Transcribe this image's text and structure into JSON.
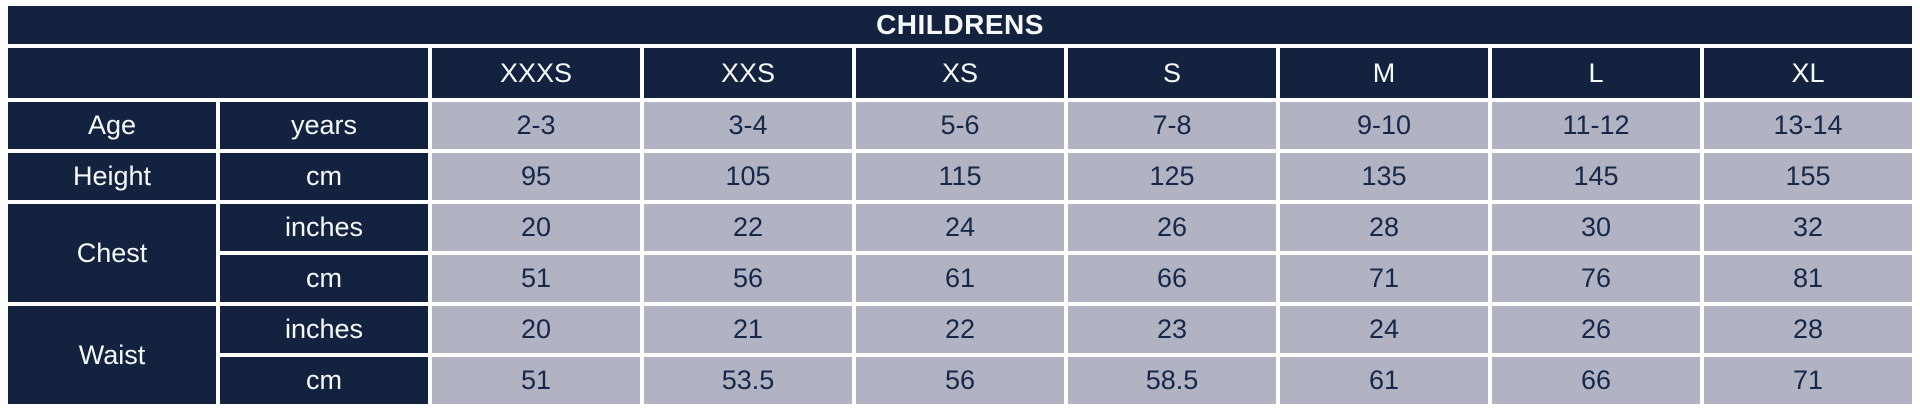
{
  "colors": {
    "header_bg": "#13233f",
    "header_text": "#f7f8fa",
    "cell_bg": "#b1b3c2",
    "cell_text": "#16284a",
    "background": "#ffffff"
  },
  "chart_data": {
    "type": "table",
    "title": "CHILDRENS",
    "size_columns": [
      "XXXS",
      "XXS",
      "XS",
      "S",
      "M",
      "L",
      "XL"
    ],
    "measurements": [
      {
        "label": "Age",
        "rows": [
          {
            "unit": "years",
            "values": [
              "2-3",
              "3-4",
              "5-6",
              "7-8",
              "9-10",
              "11-12",
              "13-14"
            ]
          }
        ]
      },
      {
        "label": "Height",
        "rows": [
          {
            "unit": "cm",
            "values": [
              "95",
              "105",
              "115",
              "125",
              "135",
              "145",
              "155"
            ]
          }
        ]
      },
      {
        "label": "Chest",
        "rows": [
          {
            "unit": "inches",
            "values": [
              "20",
              "22",
              "24",
              "26",
              "28",
              "30",
              "32"
            ]
          },
          {
            "unit": "cm",
            "values": [
              "51",
              "56",
              "61",
              "66",
              "71",
              "76",
              "81"
            ]
          }
        ]
      },
      {
        "label": "Waist",
        "rows": [
          {
            "unit": "inches",
            "values": [
              "20",
              "21",
              "22",
              "23",
              "24",
              "26",
              "28"
            ]
          },
          {
            "unit": "cm",
            "values": [
              "51",
              "53.5",
              "56",
              "58.5",
              "61",
              "66",
              "71"
            ]
          }
        ]
      }
    ]
  }
}
